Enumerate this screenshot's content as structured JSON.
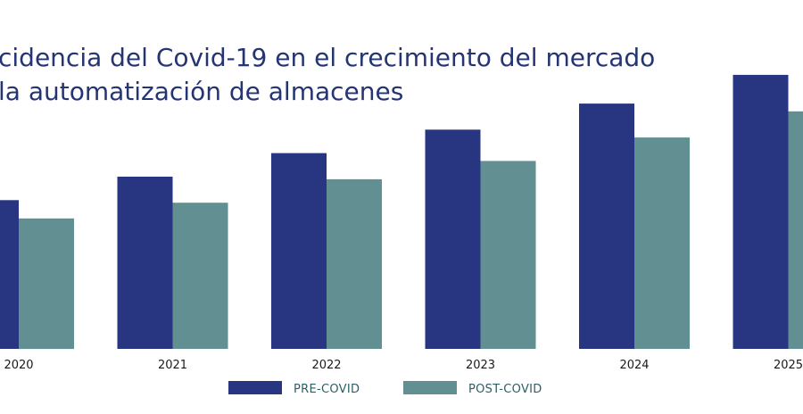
{
  "chart_data": {
    "type": "bar",
    "title_lines": [
      "cidencia del Covid-19 en el crecimiento del mercado",
      "la automatización de almacenes"
    ],
    "categories": [
      "2020",
      "2021",
      "2022",
      "2023",
      "2024",
      "2025"
    ],
    "series": [
      {
        "name": "PRE-COVID",
        "values": [
          57,
          66,
          75,
          84,
          94,
          105
        ]
      },
      {
        "name": "POST-COVID",
        "values": [
          50,
          56,
          65,
          72,
          81,
          91
        ]
      }
    ],
    "ylim": [
      0,
      120
    ],
    "grid": false,
    "legend_position": "bottom-center",
    "colors": {
      "series": [
        "#283580",
        "#628f92"
      ],
      "title": "#253573",
      "tick": "#1a1a1a",
      "legend_text": "#2b5f66"
    }
  }
}
